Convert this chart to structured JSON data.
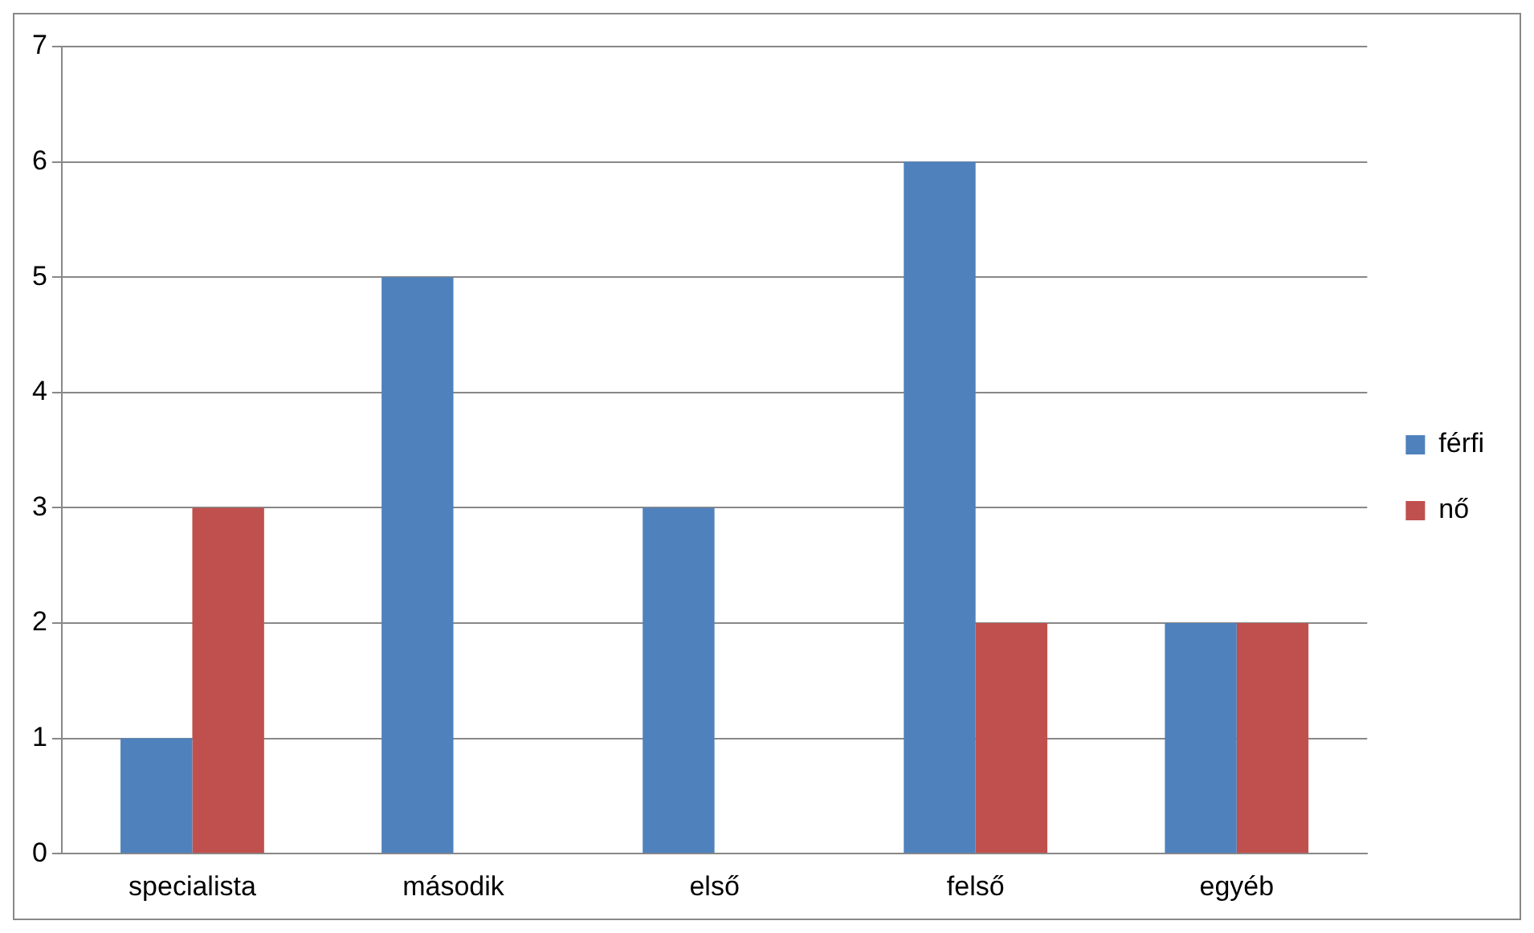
{
  "chart_data": {
    "type": "bar",
    "categories": [
      "specialista",
      "második",
      "első",
      "felső",
      "egyéb"
    ],
    "series": [
      {
        "name": "férfi",
        "color": "#4f81bd",
        "values": [
          1,
          5,
          3,
          6,
          2
        ]
      },
      {
        "name": "nő",
        "color": "#c0504d",
        "values": [
          3,
          0,
          0,
          2,
          2
        ]
      }
    ],
    "ylim": [
      0,
      7
    ],
    "yticks": [
      0,
      1,
      2,
      3,
      4,
      5,
      6,
      7
    ],
    "grid": "y",
    "legend": "right"
  }
}
